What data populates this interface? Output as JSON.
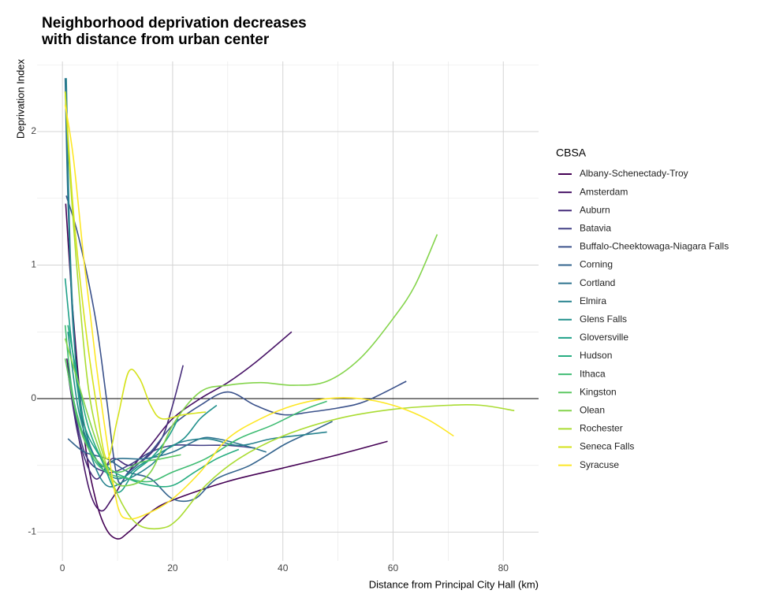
{
  "chart_data": {
    "type": "line",
    "title": [
      "Neighborhood deprivation decreases",
      "with distance from urban center"
    ],
    "x_label": "Distance from Principal City Hall (km)",
    "y_label": "Deprivation Index",
    "legend_title": "CBSA",
    "legend_position": "right",
    "grid": true,
    "reference_line": 0,
    "xlim": [
      -4.6,
      86.4
    ],
    "xticks": [
      0,
      20,
      40,
      60,
      80
    ],
    "ylim": [
      -1.215,
      2.525
    ],
    "yticks": [
      -1,
      0,
      1,
      2
    ],
    "series": [
      {
        "name": "Albany-Schenectady-Troy",
        "color": "#440154",
        "x": [
          0.6,
          2,
          4,
          6,
          8,
          10,
          12,
          16,
          20,
          30,
          40,
          50,
          59
        ],
        "values": [
          1.46,
          0.6,
          -0.3,
          -0.75,
          -0.98,
          -1.05,
          -1.0,
          -0.85,
          -0.76,
          -0.62,
          -0.52,
          -0.42,
          -0.32
        ]
      },
      {
        "name": "Amsterdam",
        "color": "#481467",
        "x": [
          0.8,
          3,
          5,
          7,
          9,
          12,
          16,
          20,
          25,
          30,
          35,
          41.6
        ],
        "values": [
          0.3,
          -0.3,
          -0.7,
          -0.84,
          -0.75,
          -0.55,
          -0.35,
          -0.15,
          0.0,
          0.12,
          0.27,
          0.5
        ]
      },
      {
        "name": "Auburn",
        "color": "#472D7B",
        "x": [
          0.8,
          3,
          6,
          9,
          12,
          15,
          18,
          20,
          21.9
        ],
        "values": [
          0.25,
          -0.3,
          -0.6,
          -0.45,
          -0.5,
          -0.45,
          -0.3,
          -0.05,
          0.25
        ]
      },
      {
        "name": "Batavia",
        "color": "#424086",
        "x": [
          1,
          4,
          8,
          12,
          16,
          20,
          25,
          30,
          35
        ],
        "values": [
          0.2,
          -0.4,
          -0.55,
          -0.5,
          -0.4,
          -0.35,
          -0.35,
          -0.35,
          -0.37
        ]
      },
      {
        "name": "Buffalo-Cheektowaga-Niagara Falls",
        "color": "#3B528B",
        "x": [
          0.7,
          3,
          6,
          8,
          10,
          12,
          16,
          20,
          25,
          30,
          35,
          40,
          45,
          50,
          55,
          62.4
        ],
        "values": [
          1.52,
          1.2,
          0.6,
          0.0,
          -0.6,
          -0.55,
          -0.4,
          -0.2,
          -0.05,
          0.05,
          -0.05,
          -0.12,
          -0.1,
          -0.07,
          -0.02,
          0.13
        ]
      },
      {
        "name": "Corning",
        "color": "#33638D",
        "x": [
          1,
          4,
          8,
          12,
          16,
          20,
          24,
          28,
          34,
          40,
          44,
          49
        ],
        "values": [
          -0.3,
          -0.4,
          -0.45,
          -0.55,
          -0.6,
          -0.75,
          -0.75,
          -0.6,
          -0.5,
          -0.35,
          -0.27,
          -0.17
        ]
      },
      {
        "name": "Cortland",
        "color": "#2C728E",
        "x": [
          0.5,
          1,
          2,
          4,
          7,
          10,
          15,
          20,
          25,
          28,
          33,
          37
        ],
        "values": [
          2.4,
          1.5,
          0.5,
          -0.2,
          -0.5,
          -0.45,
          -0.45,
          -0.4,
          -0.3,
          -0.3,
          -0.35,
          -0.4
        ]
      },
      {
        "name": "Elmira",
        "color": "#26828E",
        "x": [
          0.7,
          1.5,
          3,
          5,
          8,
          12,
          16,
          20,
          26,
          32,
          38,
          44,
          48
        ],
        "values": [
          2.4,
          1.0,
          0.0,
          -0.4,
          -0.65,
          -0.6,
          -0.5,
          -0.35,
          -0.3,
          -0.35,
          -0.3,
          -0.27,
          -0.25
        ]
      },
      {
        "name": "Glens Falls",
        "color": "#21908C",
        "x": [
          1,
          3,
          6,
          10,
          14,
          18,
          22,
          25,
          28
        ],
        "values": [
          0.5,
          -0.1,
          -0.45,
          -0.6,
          -0.5,
          -0.4,
          -0.3,
          -0.15,
          -0.05
        ]
      },
      {
        "name": "Gloversville",
        "color": "#1FA088",
        "x": [
          0.5,
          2,
          4,
          7,
          10,
          13,
          16,
          19,
          21
        ],
        "values": [
          0.9,
          0.3,
          -0.2,
          -0.45,
          -0.7,
          -0.55,
          -0.45,
          -0.3,
          -0.15
        ]
      },
      {
        "name": "Hudson",
        "color": "#27AD81",
        "x": [
          1,
          3,
          5,
          8,
          12,
          16,
          20,
          24,
          28,
          32
        ],
        "values": [
          0.55,
          0.1,
          -0.25,
          -0.5,
          -0.6,
          -0.65,
          -0.65,
          -0.55,
          -0.45,
          -0.38
        ]
      },
      {
        "name": "Ithaca",
        "color": "#3FBC73",
        "x": [
          0.5,
          2,
          5,
          8,
          12,
          16,
          20,
          26,
          32,
          38,
          44,
          48
        ],
        "values": [
          0.55,
          0.0,
          -0.4,
          -0.55,
          -0.6,
          -0.62,
          -0.55,
          -0.45,
          -0.3,
          -0.2,
          -0.08,
          -0.02
        ]
      },
      {
        "name": "Kingston",
        "color": "#5DC863",
        "x": [
          0.5,
          3,
          6,
          10,
          14,
          18,
          21.5
        ],
        "values": [
          0.3,
          -0.2,
          -0.45,
          -0.55,
          -0.48,
          -0.45,
          -0.42
        ]
      },
      {
        "name": "Olean",
        "color": "#84D44B",
        "x": [
          0.5,
          3,
          6,
          9,
          12,
          16,
          20,
          25,
          30,
          36,
          42,
          48,
          54,
          60,
          64,
          68
        ],
        "values": [
          0.45,
          0.1,
          -0.3,
          -0.6,
          -0.65,
          -0.55,
          -0.2,
          0.05,
          0.1,
          0.12,
          0.1,
          0.13,
          0.3,
          0.6,
          0.85,
          1.23
        ]
      },
      {
        "name": "Rochester",
        "color": "#AADC32",
        "x": [
          0.5,
          1.5,
          3,
          5,
          8,
          11,
          14,
          18,
          21,
          26,
          32,
          40,
          50,
          60,
          70,
          76,
          82
        ],
        "values": [
          2.3,
          1.6,
          0.8,
          0.0,
          -0.5,
          -0.8,
          -0.95,
          -0.97,
          -0.9,
          -0.65,
          -0.45,
          -0.28,
          -0.15,
          -0.08,
          -0.05,
          -0.05,
          -0.09
        ]
      },
      {
        "name": "Seneca Falls",
        "color": "#D5E21A",
        "x": [
          0.5,
          2,
          4,
          6,
          8,
          10,
          12,
          14,
          16,
          18,
          22,
          26
        ],
        "values": [
          2.3,
          1.4,
          0.6,
          0.0,
          -0.45,
          -0.15,
          0.2,
          0.15,
          -0.05,
          -0.15,
          -0.12,
          -0.1
        ]
      },
      {
        "name": "Syracuse",
        "color": "#FDE725",
        "x": [
          0.5,
          2,
          4,
          6,
          8,
          10,
          12,
          16,
          20,
          25,
          30,
          36,
          42,
          48,
          54,
          60,
          66,
          71
        ],
        "values": [
          2.2,
          1.8,
          1.0,
          0.3,
          -0.3,
          -0.8,
          -0.9,
          -0.85,
          -0.75,
          -0.55,
          -0.3,
          -0.15,
          -0.05,
          0.0,
          0.0,
          -0.05,
          -0.15,
          -0.28
        ]
      }
    ]
  }
}
